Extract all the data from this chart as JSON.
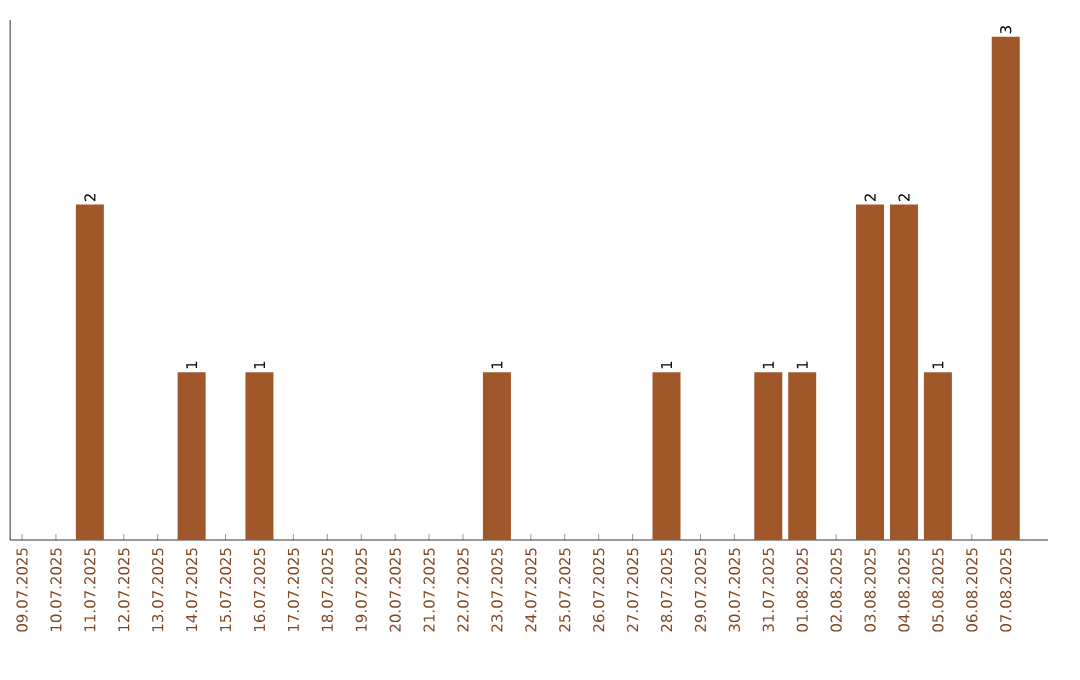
{
  "chart_data": {
    "type": "bar",
    "categories": [
      "09.07.2025",
      "10.07.2025",
      "11.07.2025",
      "12.07.2025",
      "13.07.2025",
      "14.07.2025",
      "15.07.2025",
      "16.07.2025",
      "17.07.2025",
      "18.07.2025",
      "19.07.2025",
      "20.07.2025",
      "21.07.2025",
      "22.07.2025",
      "23.07.2025",
      "24.07.2025",
      "25.07.2025",
      "26.07.2025",
      "27.07.2025",
      "28.07.2025",
      "29.07.2025",
      "30.07.2025",
      "31.07.2025",
      "01.08.2025",
      "02.08.2025",
      "03.08.2025",
      "04.08.2025",
      "05.08.2025",
      "06.08.2025",
      "07.08.2025"
    ],
    "values": [
      0,
      0,
      2,
      0,
      0,
      1,
      0,
      1,
      0,
      0,
      0,
      0,
      0,
      0,
      1,
      0,
      0,
      0,
      0,
      1,
      0,
      0,
      1,
      1,
      0,
      2,
      2,
      1,
      0,
      3
    ],
    "value_labels": [
      null,
      null,
      "2",
      null,
      null,
      "1",
      null,
      "1",
      null,
      null,
      null,
      null,
      null,
      null,
      "1",
      null,
      null,
      null,
      null,
      "1",
      null,
      null,
      "1",
      "1",
      null,
      "2",
      "2",
      "1",
      null,
      "3"
    ],
    "color": "#a0572a",
    "ylim": [
      0,
      3.1
    ],
    "tick_labels": "x"
  }
}
